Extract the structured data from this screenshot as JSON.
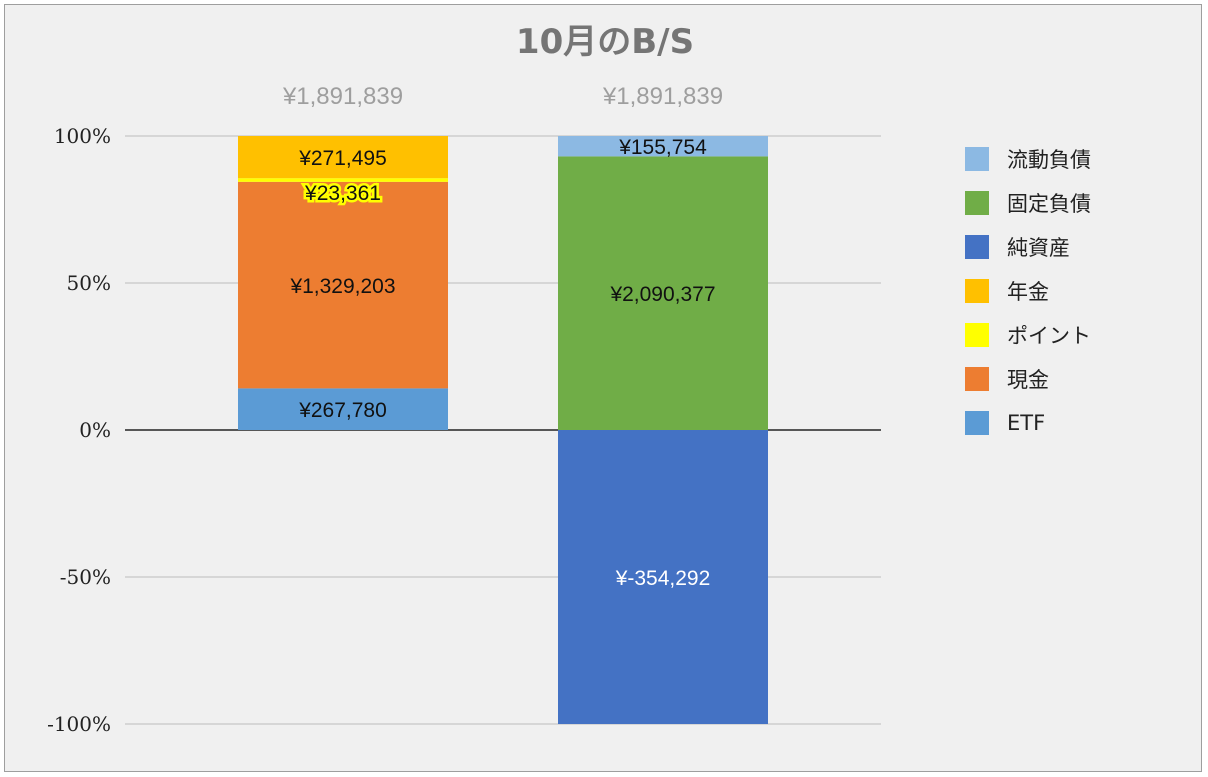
{
  "chart_data": {
    "type": "bar",
    "stacked": "100%",
    "title": "10月のB/S",
    "categories": [
      "",
      ""
    ],
    "totals": [
      "¥1,891,839",
      "¥1,891,839"
    ],
    "ylim": [
      -100,
      100
    ],
    "yticks": [
      {
        "value": 100,
        "label": "100%"
      },
      {
        "value": 50,
        "label": "50%"
      },
      {
        "value": 0,
        "label": "0%"
      },
      {
        "value": -50,
        "label": "-50%"
      },
      {
        "value": -100,
        "label": "-100%"
      }
    ],
    "grid": true,
    "legend_position": "right",
    "series": [
      {
        "name": "ETF",
        "color": "#5b9bd5",
        "values": [
          267780,
          0
        ],
        "labels": [
          "¥267,780",
          ""
        ]
      },
      {
        "name": "現金",
        "color": "#ed7d31",
        "values": [
          1329203,
          0
        ],
        "labels": [
          "¥1,329,203",
          ""
        ]
      },
      {
        "name": "ポイント",
        "color": "#ffff00",
        "values": [
          23361,
          0
        ],
        "labels": [
          "¥23,361",
          ""
        ]
      },
      {
        "name": "年金",
        "color": "#ffc000",
        "values": [
          271495,
          0
        ],
        "labels": [
          "¥271,495",
          ""
        ]
      },
      {
        "name": "純資産",
        "color": "#4472c4",
        "values": [
          0,
          -354292
        ],
        "labels": [
          "",
          "¥-354,292"
        ]
      },
      {
        "name": "固定負債",
        "color": "#70ad47",
        "values": [
          0,
          2090377
        ],
        "labels": [
          "",
          "¥2,090,377"
        ]
      },
      {
        "name": "流動負債",
        "color": "#8cb9e3",
        "values": [
          0,
          155754
        ],
        "labels": [
          "",
          "¥155,754"
        ]
      }
    ],
    "legend_order": [
      "流動負債",
      "固定負債",
      "純資産",
      "年金",
      "ポイント",
      "現金",
      "ETF"
    ]
  }
}
